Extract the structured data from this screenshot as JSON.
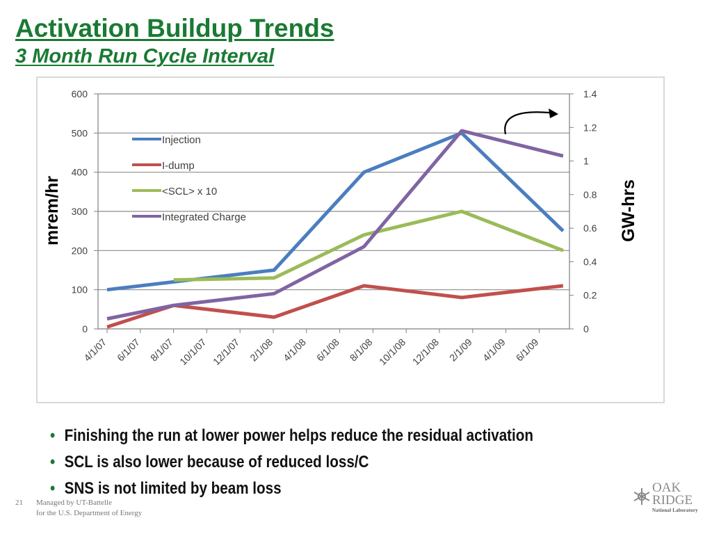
{
  "slide": {
    "title": "Activation Buildup Trends",
    "subtitle": "3 Month Run Cycle Interval",
    "bullets": [
      "Finishing the run at lower power helps reduce the residual activation",
      "SCL is also lower because of reduced loss/C",
      "SNS is not limited by beam loss"
    ],
    "page_number": "21",
    "footer_line1": "Managed by UT-Battelle",
    "footer_line2": "for the U.S. Department of Energy",
    "logo_line1": "OAK",
    "logo_line2": "RIDGE",
    "logo_line3": "National Laboratory"
  },
  "chart_data": {
    "type": "line",
    "title": "",
    "ylabel": "mrem/hr",
    "y2label": "GW-hrs",
    "ylim": [
      0,
      600
    ],
    "y2lim": [
      0,
      1.4
    ],
    "yticks": [
      "0",
      "100",
      "200",
      "300",
      "400",
      "500",
      "600"
    ],
    "y2ticks": [
      "0",
      "0.2",
      "0.4",
      "0.6",
      "0.8",
      "1",
      "1.2",
      "1.4"
    ],
    "xticks": [
      "4/1/07",
      "6/1/07",
      "8/1/07",
      "10/1/07",
      "12/1/07",
      "2/1/08",
      "4/1/08",
      "6/1/08",
      "8/1/08",
      "10/1/08",
      "12/1/08",
      "2/1/09",
      "4/1/09",
      "6/1/09"
    ],
    "grid": true,
    "legend_position": "upper-left",
    "series": [
      {
        "name": "Injection",
        "axis": "left",
        "color": "#4a7ebf",
        "x": [
          "4/1/07",
          "8/1/07",
          "2/1/08",
          "7/15/08",
          "1/10/09",
          "7/15/09"
        ],
        "values": [
          100,
          120,
          150,
          400,
          500,
          250
        ]
      },
      {
        "name": "I-dump",
        "axis": "left",
        "color": "#c0504d",
        "x": [
          "4/1/07",
          "8/1/07",
          "2/1/08",
          "7/15/08",
          "1/10/09",
          "7/15/09"
        ],
        "values": [
          5,
          60,
          30,
          110,
          80,
          110
        ]
      },
      {
        "name": "<SCL> x 10",
        "axis": "left",
        "color": "#9bbb59",
        "x": [
          "8/1/07",
          "2/1/08",
          "7/15/08",
          "1/10/09",
          "7/15/09"
        ],
        "values": [
          125,
          130,
          240,
          300,
          200
        ]
      },
      {
        "name": "Integrated Charge",
        "axis": "right",
        "color": "#8064a2",
        "x": [
          "4/1/07",
          "8/1/07",
          "2/1/08",
          "7/15/08",
          "1/10/09",
          "7/15/09"
        ],
        "values": [
          0.06,
          0.14,
          0.21,
          0.49,
          1.18,
          1.03
        ]
      }
    ],
    "colors": {
      "axis": "#7f7f7f",
      "grid": "#8c8c8c",
      "text": "#404040"
    }
  }
}
